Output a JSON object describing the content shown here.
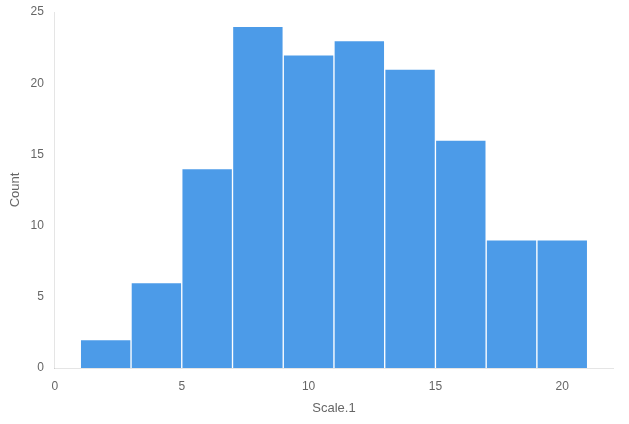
{
  "chart_data": {
    "type": "histogram",
    "bins": [
      1,
      3,
      5,
      7,
      9,
      11,
      13,
      15,
      17,
      19,
      21
    ],
    "values": [
      2,
      6,
      14,
      24,
      22,
      23,
      21,
      16,
      9,
      9
    ],
    "color": "#4C9BE8",
    "xlabel": "Scale.1",
    "ylabel": "Count",
    "xlim": [
      0,
      22
    ],
    "ylim": [
      0,
      25
    ],
    "xticks": [
      0,
      5,
      10,
      15,
      20
    ],
    "yticks": [
      0,
      5,
      10,
      15,
      20,
      25
    ],
    "grid": false
  }
}
